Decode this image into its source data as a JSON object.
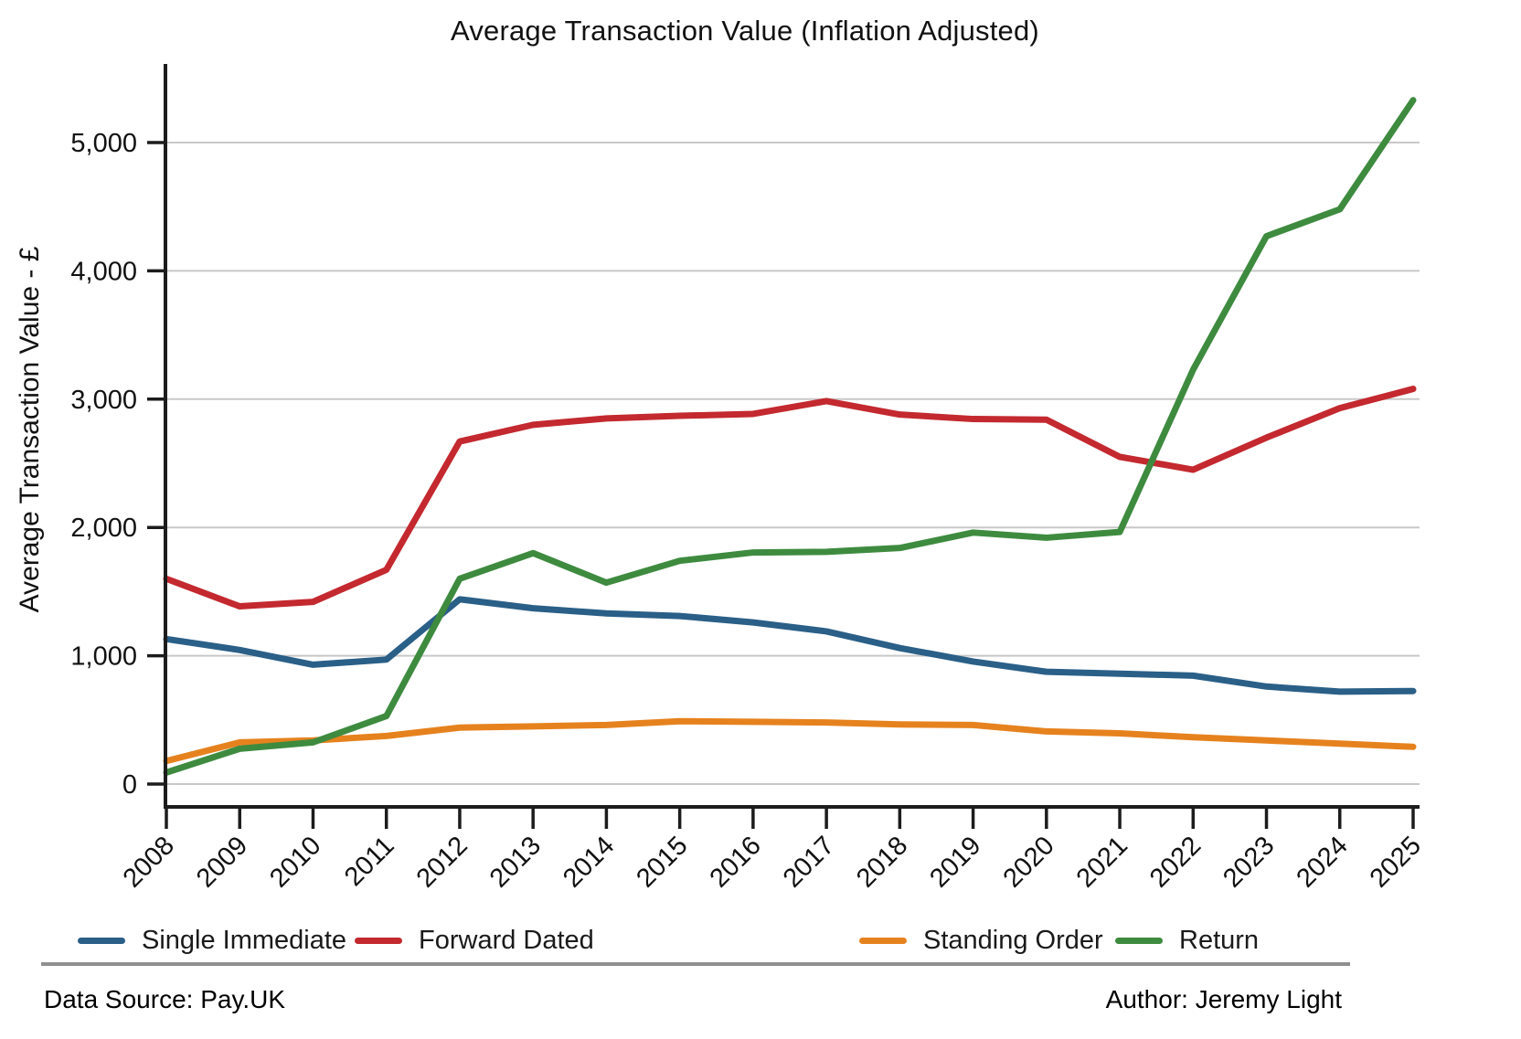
{
  "title": "Average Transaction Value (Inflation Adjusted)",
  "y_axis": {
    "label": "Average Transaction Value - £",
    "tick_values": [
      0,
      1000,
      2000,
      3000,
      4000,
      5000
    ],
    "tick_labels": [
      "0",
      "1,000",
      "2,000",
      "3,000",
      "4,000",
      "5,000"
    ]
  },
  "x_axis": {
    "tick_labels": [
      "2008",
      "2009",
      "2010",
      "2011",
      "2012",
      "2013",
      "2014",
      "2015",
      "2016",
      "2017",
      "2018",
      "2019",
      "2020",
      "2021",
      "2022",
      "2023",
      "2024",
      "2025"
    ]
  },
  "footer": {
    "source": "Data Source: Pay.UK",
    "author": "Author: Jeremy Light"
  },
  "style_colors": {
    "axis": "#1c1c1c",
    "grid": "#c8c8c8",
    "divider": "#8f8f8f"
  },
  "chart_data": {
    "type": "line",
    "title": "Average Transaction Value (Inflation Adjusted)",
    "xlabel": "",
    "ylabel": "Average Transaction Value - £",
    "ylim": [
      0,
      5600
    ],
    "grid": "horizontal",
    "legend_position": "bottom",
    "x": [
      2008,
      2009,
      2010,
      2011,
      2012,
      2013,
      2014,
      2015,
      2016,
      2017,
      2018,
      2019,
      2020,
      2021,
      2022,
      2023,
      2024,
      2025
    ],
    "series": [
      {
        "name": "Single Immediate",
        "color": "#2A5F87",
        "values": [
          1130,
          1045,
          930,
          970,
          1440,
          1370,
          1330,
          1310,
          1260,
          1190,
          1060,
          955,
          875,
          860,
          845,
          760,
          720,
          725
        ]
      },
      {
        "name": "Forward Dated",
        "color": "#C3292F",
        "values": [
          1600,
          1385,
          1420,
          1670,
          2670,
          2800,
          2850,
          2870,
          2885,
          2985,
          2880,
          2845,
          2840,
          2550,
          2450,
          2700,
          2930,
          3080
        ]
      },
      {
        "name": "Standing Order",
        "color": "#E6821E",
        "values": [
          180,
          325,
          340,
          375,
          440,
          450,
          460,
          490,
          485,
          480,
          465,
          460,
          410,
          395,
          365,
          340,
          315,
          290
        ]
      },
      {
        "name": "Return",
        "color": "#3E8B3F",
        "values": [
          90,
          275,
          325,
          530,
          1600,
          1800,
          1570,
          1740,
          1805,
          1810,
          1840,
          1960,
          1920,
          1965,
          3230,
          4270,
          4480,
          5330
        ]
      }
    ]
  }
}
